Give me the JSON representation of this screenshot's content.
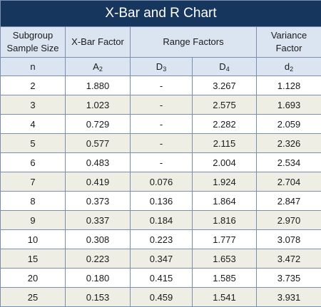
{
  "title": "X-Bar and R Chart",
  "headers": {
    "subgroup_line1": "Subgroup",
    "subgroup_line2": "Sample Size",
    "xbar_factor": "X-Bar Factor",
    "range_factors": "Range Factors",
    "variance_line1": "Variance",
    "variance_line2": "Factor"
  },
  "symbols": {
    "n": "n",
    "a_base": "A",
    "a_sub": "2",
    "d3_base": "D",
    "d3_sub": "3",
    "d4_base": "D",
    "d4_sub": "4",
    "d2_base": "d",
    "d2_sub": "2"
  },
  "rows": [
    {
      "n": "2",
      "A2": "1.880",
      "D3": "-",
      "D4": "3.267",
      "d2": "1.128"
    },
    {
      "n": "3",
      "A2": "1.023",
      "D3": "-",
      "D4": "2.575",
      "d2": "1.693"
    },
    {
      "n": "4",
      "A2": "0.729",
      "D3": "-",
      "D4": "2.282",
      "d2": "2.059"
    },
    {
      "n": "5",
      "A2": "0.577",
      "D3": "-",
      "D4": "2.115",
      "d2": "2.326"
    },
    {
      "n": "6",
      "A2": "0.483",
      "D3": "-",
      "D4": "2.004",
      "d2": "2.534"
    },
    {
      "n": "7",
      "A2": "0.419",
      "D3": "0.076",
      "D4": "1.924",
      "d2": "2.704"
    },
    {
      "n": "8",
      "A2": "0.373",
      "D3": "0.136",
      "D4": "1.864",
      "d2": "2.847"
    },
    {
      "n": "9",
      "A2": "0.337",
      "D3": "0.184",
      "D4": "1.816",
      "d2": "2.970"
    },
    {
      "n": "10",
      "A2": "0.308",
      "D3": "0.223",
      "D4": "1.777",
      "d2": "3.078"
    },
    {
      "n": "15",
      "A2": "0.223",
      "D3": "0.347",
      "D4": "1.653",
      "d2": "3.472"
    },
    {
      "n": "20",
      "A2": "0.180",
      "D3": "0.415",
      "D4": "1.585",
      "d2": "3.735"
    },
    {
      "n": "25",
      "A2": "0.153",
      "D3": "0.459",
      "D4": "1.541",
      "d2": "3.931"
    }
  ],
  "colors": {
    "title_bg": "#17365d",
    "header_bg": "#dbe5f1",
    "row_alt_bg": "#efeee4",
    "border": "#7a8fb0"
  }
}
